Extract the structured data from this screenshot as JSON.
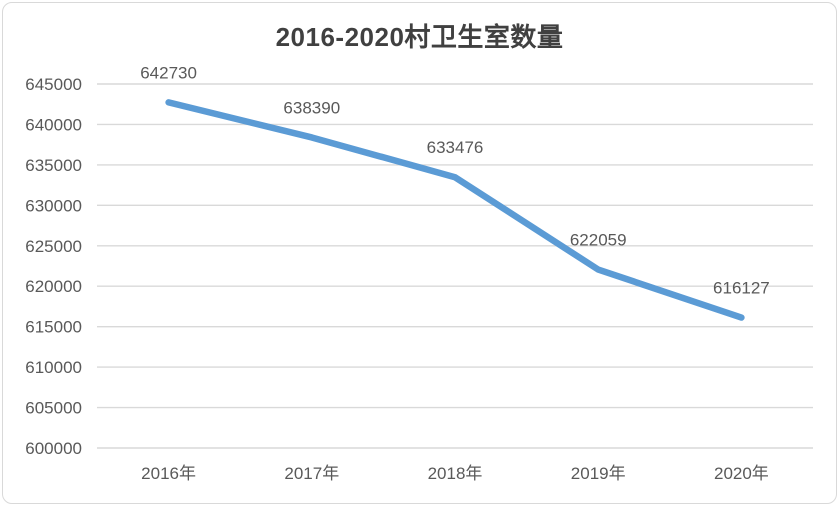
{
  "chart_data": {
    "type": "line",
    "title": "2016-2020村卫生室数量",
    "categories": [
      "2016年",
      "2017年",
      "2018年",
      "2019年",
      "2020年"
    ],
    "values": [
      642730,
      638390,
      633476,
      622059,
      616127
    ],
    "data_labels": [
      "642730",
      "638390",
      "633476",
      "622059",
      "616127"
    ],
    "xlabel": "",
    "ylabel": "",
    "ylim": [
      600000,
      645000
    ],
    "ytick_step": 5000,
    "ytick_labels": [
      "645000",
      "640000",
      "635000",
      "630000",
      "625000",
      "620000",
      "615000",
      "610000",
      "605000",
      "600000"
    ],
    "grid": true,
    "legend": "none",
    "colors": {
      "line": "#5B9BD5",
      "title": "#404040",
      "axis_labels": "#595959",
      "data_labels": "#595959",
      "gridline": "#D9D9D9",
      "frame_border": "#D9D9D9",
      "background": "#FFFFFF"
    }
  }
}
